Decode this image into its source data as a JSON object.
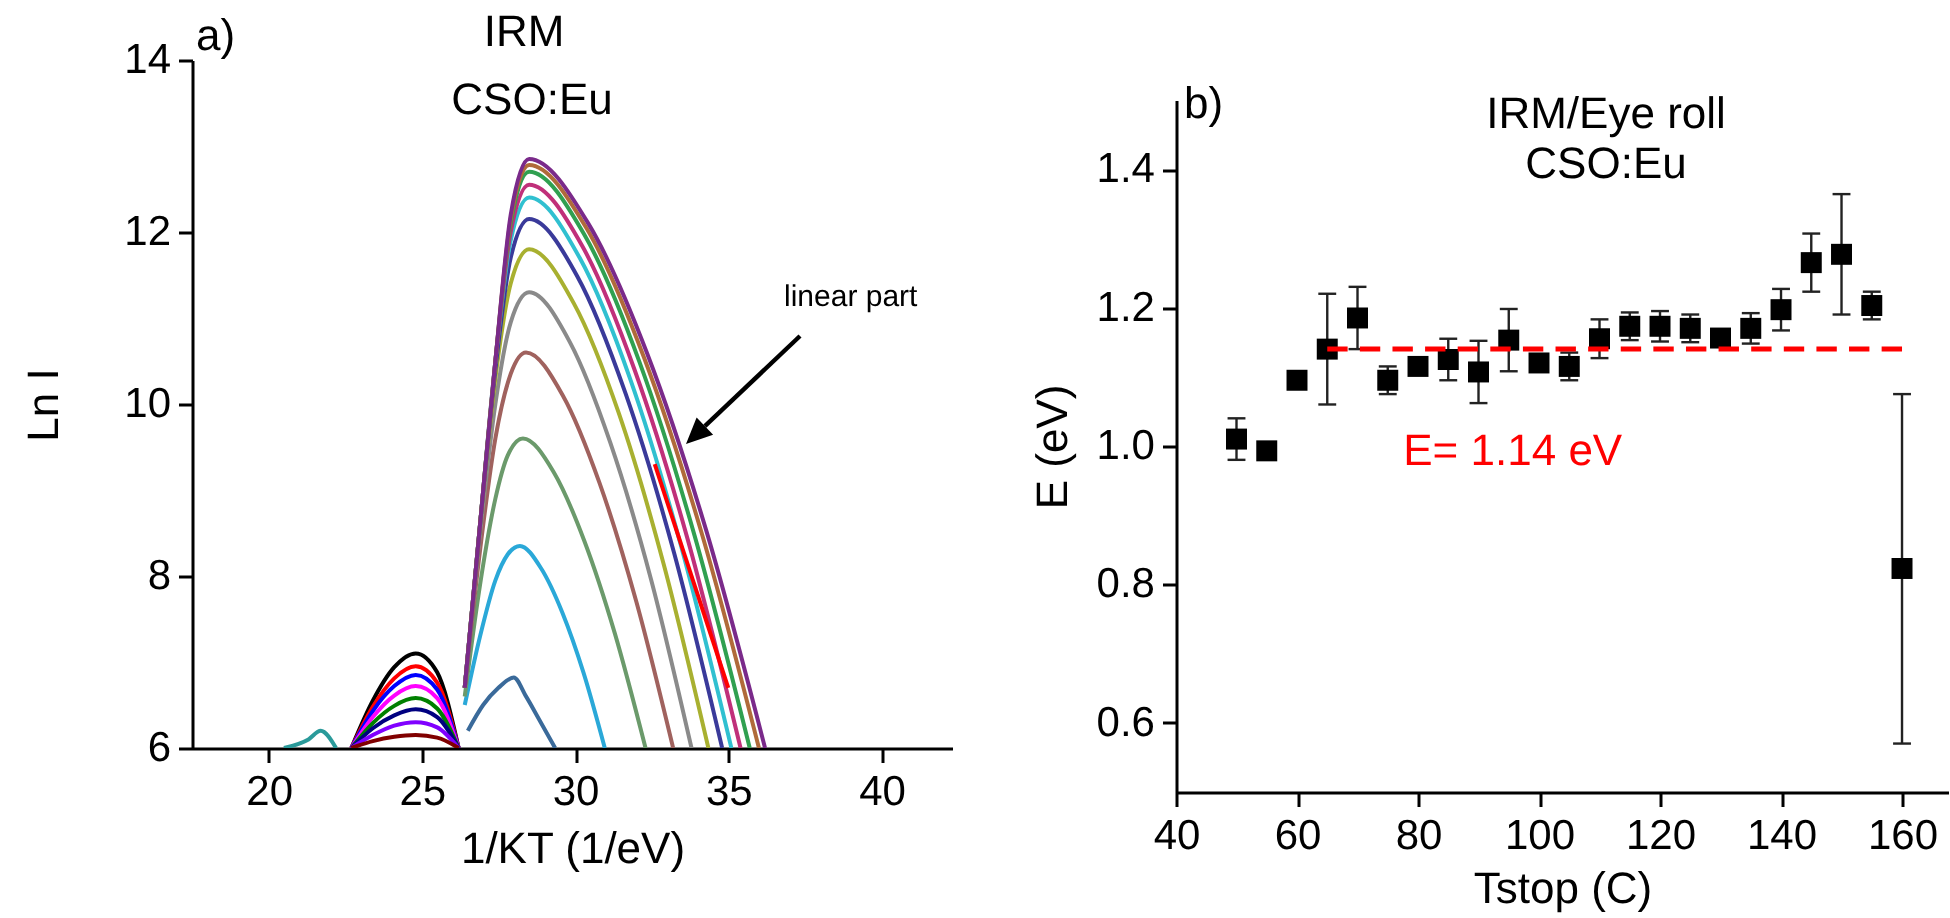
{
  "chart_data": [
    {
      "type": "line",
      "title": "IRM",
      "subtitle": "CSO:Eu",
      "xlabel": "1/KT (1/eV)",
      "ylabel": "Ln I",
      "xlim": [
        17.5,
        42.3
      ],
      "ylim": [
        6,
        14
      ],
      "xticks": [
        20,
        25,
        30,
        35,
        40
      ],
      "yticks": [
        6,
        8,
        10,
        12,
        14
      ],
      "annotations": [
        "a)",
        "linear part"
      ],
      "series": [
        {
          "color": "#2a9a9a",
          "x": [
            20.5,
            21.3,
            21.7,
            22.2
          ],
          "values": [
            6.0,
            6.1,
            6.2,
            6.0
          ]
        },
        {
          "color": "#000000",
          "x": [
            22.7,
            23.4,
            24.1,
            24.8,
            25.5,
            26.2
          ],
          "values": [
            6.0,
            6.55,
            6.94,
            7.1,
            6.88,
            6.0
          ]
        },
        {
          "color": "#ff0000",
          "x": [
            22.7,
            23.4,
            24.1,
            24.8,
            25.5,
            26.2
          ],
          "values": [
            6.0,
            6.48,
            6.81,
            6.95,
            6.76,
            6.0
          ]
        },
        {
          "color": "#0000ff",
          "x": [
            22.7,
            23.4,
            24.1,
            24.8,
            25.5,
            26.2
          ],
          "values": [
            6.0,
            6.43,
            6.72,
            6.85,
            6.68,
            6.0
          ]
        },
        {
          "color": "#ff00ff",
          "x": [
            22.7,
            23.4,
            24.1,
            24.8,
            25.5,
            26.2
          ],
          "values": [
            6.0,
            6.36,
            6.61,
            6.72,
            6.58,
            6.0
          ]
        },
        {
          "color": "#008000",
          "x": [
            22.7,
            23.4,
            24.1,
            24.8,
            25.5,
            26.2
          ],
          "values": [
            6.0,
            6.29,
            6.49,
            6.58,
            6.46,
            6.0
          ]
        },
        {
          "color": "#000080",
          "x": [
            22.7,
            23.4,
            24.1,
            24.8,
            25.5,
            26.2
          ],
          "values": [
            6.0,
            6.23,
            6.38,
            6.45,
            6.36,
            6.0
          ]
        },
        {
          "color": "#8000ff",
          "x": [
            22.7,
            23.4,
            24.1,
            24.8,
            25.5,
            26.2
          ],
          "values": [
            6.0,
            6.15,
            6.26,
            6.3,
            6.24,
            6.0
          ]
        },
        {
          "color": "#800000",
          "x": [
            22.7,
            23.4,
            24.1,
            24.8,
            25.5,
            26.2
          ],
          "values": [
            6.0,
            6.08,
            6.13,
            6.15,
            6.12,
            6.0
          ]
        },
        {
          "color": "#3a6a9a",
          "x": [
            26.5,
            27.0,
            27.5,
            28.0,
            28.4,
            28.8,
            29.35
          ],
          "values": [
            6.2,
            6.5,
            6.7,
            6.82,
            6.6,
            6.35,
            6.0
          ]
        },
        {
          "color": "#2aa8d8",
          "x": [
            26.4,
            26.9,
            27.4,
            27.8,
            28.2,
            28.89,
            29.59,
            30.28,
            30.97
          ],
          "values": [
            6.5,
            7.3,
            7.95,
            8.25,
            8.35,
            8.09,
            7.57,
            6.87,
            6.0
          ]
        },
        {
          "color": "#6b9a6b",
          "x": [
            26.4,
            26.9,
            27.4,
            27.8,
            28.3,
            29.3,
            30.3,
            31.3,
            32.3
          ],
          "values": [
            6.6,
            7.9,
            8.9,
            9.4,
            9.6,
            9.21,
            8.41,
            7.33,
            6.0
          ]
        },
        {
          "color": "#a0625e",
          "x": [
            26.4,
            26.9,
            27.4,
            27.9,
            28.4,
            29.6,
            30.8,
            32.0,
            33.2
          ],
          "values": [
            6.7,
            8.3,
            9.6,
            10.35,
            10.6,
            10.1,
            9.08,
            7.7,
            6.0
          ]
        },
        {
          "color": "#8a8a8a",
          "x": [
            26.4,
            26.9,
            27.4,
            27.9,
            28.5,
            29.83,
            31.15,
            32.48,
            33.8
          ],
          "values": [
            6.7,
            8.5,
            10.0,
            10.95,
            11.3,
            10.72,
            9.55,
            7.96,
            6.0
          ]
        },
        {
          "color": "#a8b030",
          "x": [
            26.4,
            26.9,
            27.4,
            27.9,
            28.5,
            29.96,
            31.43,
            32.89,
            34.35
          ],
          "values": [
            6.7,
            8.6,
            10.3,
            11.4,
            11.8,
            11.17,
            9.89,
            8.14,
            6.0
          ]
        },
        {
          "color": "#3a3a9a",
          "x": [
            26.4,
            26.9,
            27.4,
            27.9,
            28.5,
            30.08,
            31.65,
            33.23,
            34.8
          ],
          "values": [
            6.7,
            8.6,
            10.4,
            11.7,
            12.15,
            11.48,
            10.12,
            8.27,
            6.0
          ]
        },
        {
          "color": "#30c0d0",
          "x": [
            26.4,
            26.9,
            27.4,
            27.9,
            28.5,
            30.15,
            31.8,
            33.45,
            35.1
          ],
          "values": [
            6.7,
            8.6,
            10.5,
            11.9,
            12.4,
            11.7,
            10.29,
            8.36,
            6.0
          ]
        },
        {
          "color": "#c0307a",
          "x": [
            26.4,
            26.9,
            27.4,
            27.9,
            28.5,
            30.23,
            31.95,
            33.68,
            35.4
          ],
          "values": [
            6.7,
            8.6,
            10.5,
            12.0,
            12.55,
            11.84,
            10.39,
            8.42,
            6.0
          ]
        },
        {
          "color": "#30a050",
          "x": [
            26.4,
            26.9,
            27.4,
            27.9,
            28.5,
            30.3,
            32.1,
            33.9,
            35.7
          ],
          "values": [
            6.7,
            8.6,
            10.5,
            12.1,
            12.7,
            11.97,
            10.49,
            8.47,
            6.0
          ]
        },
        {
          "color": "#b06a3a",
          "x": [
            26.4,
            26.9,
            27.4,
            27.9,
            28.5,
            30.38,
            32.25,
            34.13,
            36.0
          ],
          "values": [
            6.7,
            8.6,
            10.5,
            12.15,
            12.78,
            12.04,
            10.54,
            8.5,
            6.0
          ]
        },
        {
          "color": "#7a2a8a",
          "x": [
            26.4,
            26.9,
            27.4,
            27.9,
            28.5,
            30.43,
            32.35,
            34.28,
            36.2
          ],
          "values": [
            6.7,
            8.6,
            10.5,
            12.2,
            12.85,
            12.1,
            10.59,
            8.53,
            6.0
          ]
        },
        {
          "color": "#ff0000",
          "x": [
            32.6,
            35.0
          ],
          "values": [
            9.3,
            6.7
          ]
        }
      ]
    },
    {
      "type": "scatter",
      "title": "IRM/Eye roll",
      "subtitle": "CSO:Eu",
      "xlabel": "Tstop (C)",
      "ylabel": "E (eV)",
      "xlim": [
        40,
        167.6
      ],
      "ylim": [
        0.5,
        1.5
      ],
      "xticks": [
        40,
        60,
        80,
        100,
        120,
        140,
        160
      ],
      "yticks": [
        0.6,
        0.8,
        {
          "value": 1.0,
          "label": "1.0"
        },
        1.2,
        1.4
      ],
      "annotations": [
        "b)"
      ],
      "series": [
        {
          "marker": "square",
          "color": "#000000",
          "x": [
            50,
            55,
            60,
            65,
            70,
            75,
            80,
            85,
            90,
            95,
            100,
            105,
            110,
            115,
            120,
            125,
            130,
            135,
            140,
            145,
            150,
            155,
            160
          ],
          "values": [
            1.01,
            0.993,
            1.095,
            1.14,
            1.185,
            1.095,
            1.115,
            1.125,
            1.107,
            1.153,
            1.12,
            1.115,
            1.155,
            1.173,
            1.173,
            1.17,
            1.156,
            1.17,
            1.197,
            1.265,
            1.277,
            1.203,
            0.823
          ],
          "errors": [
            0.03,
            0.012,
            0.01,
            [
              1.06,
              1.22
            ],
            [
              1.14,
              1.23
            ],
            0.02,
            0.01,
            0.03,
            0.045,
            0.045,
            0.008,
            0.02,
            0.028,
            0.02,
            0.022,
            0.02,
            0.01,
            0.022,
            0.03,
            0.042,
            0.087,
            0.02,
            [
              0.57,
              1.075
            ]
          ]
        },
        {
          "type": "line",
          "name": "E= 1.14 eV",
          "color": "#ff0000",
          "line_style": "dashed",
          "x": [
            65,
            160
          ],
          "values": [
            1.14,
            1.14
          ]
        }
      ]
    }
  ]
}
